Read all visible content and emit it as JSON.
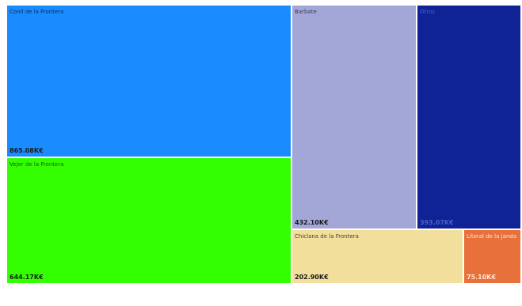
{
  "chart_data": {
    "type": "treemap",
    "tiles": [
      {
        "name": "Conil de la Frontera",
        "value_label": "865.08K€",
        "value": 865.08,
        "color": "#1a8cff",
        "name_color": "#0d2a60",
        "value_color": "#1a1a1a"
      },
      {
        "name": "Vejer de la Frontera",
        "value_label": "644.17K€",
        "value": 644.17,
        "color": "#33ff00",
        "name_color": "#1f5a1a",
        "value_color": "#1a1a1a"
      },
      {
        "name": "Barbate",
        "value_label": "432.10K€",
        "value": 432.1,
        "color": "#a3a7d8",
        "name_color": "#3a3a5a",
        "value_color": "#1a1a1a"
      },
      {
        "name": "Otros",
        "value_label": "393.07K€",
        "value": 393.07,
        "color": "#0f2396",
        "name_color": "#4a62c8",
        "value_color": "#4a62c8"
      },
      {
        "name": "Chiclana de la Frontera",
        "value_label": "202.90K€",
        "value": 202.9,
        "color": "#f2df9c",
        "name_color": "#4a4030",
        "value_color": "#1a1a1a"
      },
      {
        "name": "Litoral de la Janda",
        "value_label": "75.10K€",
        "value": 75.1,
        "color": "#e8703a",
        "name_color": "#fde6d6",
        "value_color": "#fde6d6"
      }
    ]
  }
}
